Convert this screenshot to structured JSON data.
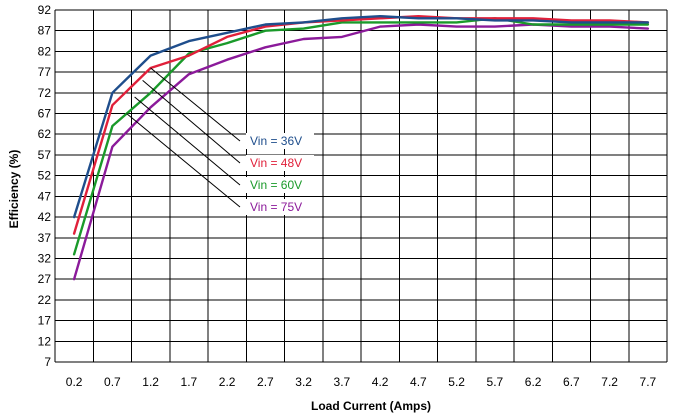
{
  "colors": {
    "vin36": "#1f4e8c",
    "vin48": "#e0203a",
    "vin60": "#1a9a2a",
    "vin75": "#8b1a9a",
    "grid": "#000000"
  },
  "chart_data": {
    "type": "line",
    "xlabel": "Load Current (Amps)",
    "ylabel": "Efficiency (%)",
    "xlim": [
      0.2,
      7.7
    ],
    "ylim": [
      7,
      92
    ],
    "x_ticks": [
      "0.2",
      "0.7",
      "1.2",
      "1.7",
      "2.2",
      "2.7",
      "3.2",
      "3.7",
      "4.2",
      "4.7",
      "5.2",
      "5.7",
      "6.2",
      "6.7",
      "7.2",
      "7.7"
    ],
    "y_ticks": [
      "92",
      "87",
      "82",
      "77",
      "72",
      "67",
      "62",
      "57",
      "52",
      "47",
      "42",
      "37",
      "32",
      "27",
      "22",
      "17",
      "12",
      "7"
    ],
    "grid": true,
    "legend_placement": "center-right",
    "series": [
      {
        "name": "Vin = 36V",
        "color": "#1f4e8c",
        "x": [
          0.2,
          0.7,
          1.2,
          1.7,
          2.2,
          2.7,
          3.2,
          3.7,
          4.2,
          4.7,
          5.2,
          5.7,
          6.2,
          6.7,
          7.2,
          7.7
        ],
        "y": [
          42,
          72,
          81,
          84.5,
          86.5,
          88.5,
          89,
          90,
          90.5,
          90,
          90,
          89.5,
          89.5,
          89,
          89,
          89
        ]
      },
      {
        "name": "Vin = 48V",
        "color": "#e0203a",
        "x": [
          0.2,
          0.7,
          1.2,
          1.7,
          2.2,
          2.7,
          3.2,
          3.7,
          4.2,
          4.7,
          5.2,
          5.7,
          6.2,
          6.7,
          7.2,
          7.7
        ],
        "y": [
          38,
          69,
          78,
          81,
          85.5,
          88,
          89,
          89.5,
          90,
          90.5,
          90,
          90,
          90,
          89.5,
          89.5,
          89
        ]
      },
      {
        "name": "Vin = 60V",
        "color": "#1a9a2a",
        "x": [
          0.2,
          0.7,
          1.2,
          1.7,
          2.2,
          2.7,
          3.2,
          3.7,
          4.2,
          4.7,
          5.2,
          5.7,
          6.2,
          6.7,
          7.2,
          7.7
        ],
        "y": [
          33,
          64,
          72,
          81.5,
          84,
          87,
          87.5,
          89,
          89,
          89,
          89,
          90,
          88.5,
          88.5,
          88.5,
          88.5
        ]
      },
      {
        "name": "Vin = 75V",
        "color": "#8b1a9a",
        "x": [
          0.2,
          0.7,
          1.2,
          1.7,
          2.2,
          2.7,
          3.2,
          3.7,
          4.2,
          4.7,
          5.2,
          5.7,
          6.2,
          6.7,
          7.2,
          7.7
        ],
        "y": [
          27,
          59,
          68.5,
          76.5,
          80,
          83,
          85,
          85.5,
          88,
          88.5,
          88,
          88,
          88.5,
          88,
          88,
          87.5
        ]
      }
    ]
  }
}
